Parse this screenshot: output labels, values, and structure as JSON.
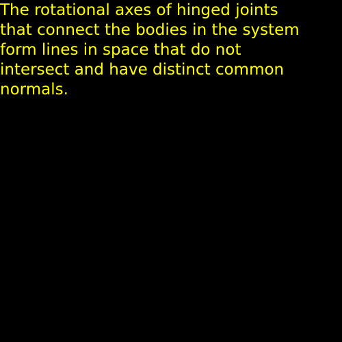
{
  "text": {
    "lines": [
      "The rotational axes of hinged joints",
      "that connect the bodies in the system",
      "form lines in space that do not",
      "intersect and have distinct common",
      "normals."
    ]
  },
  "colors": {
    "background": "#000000",
    "text": "#ffff00"
  }
}
